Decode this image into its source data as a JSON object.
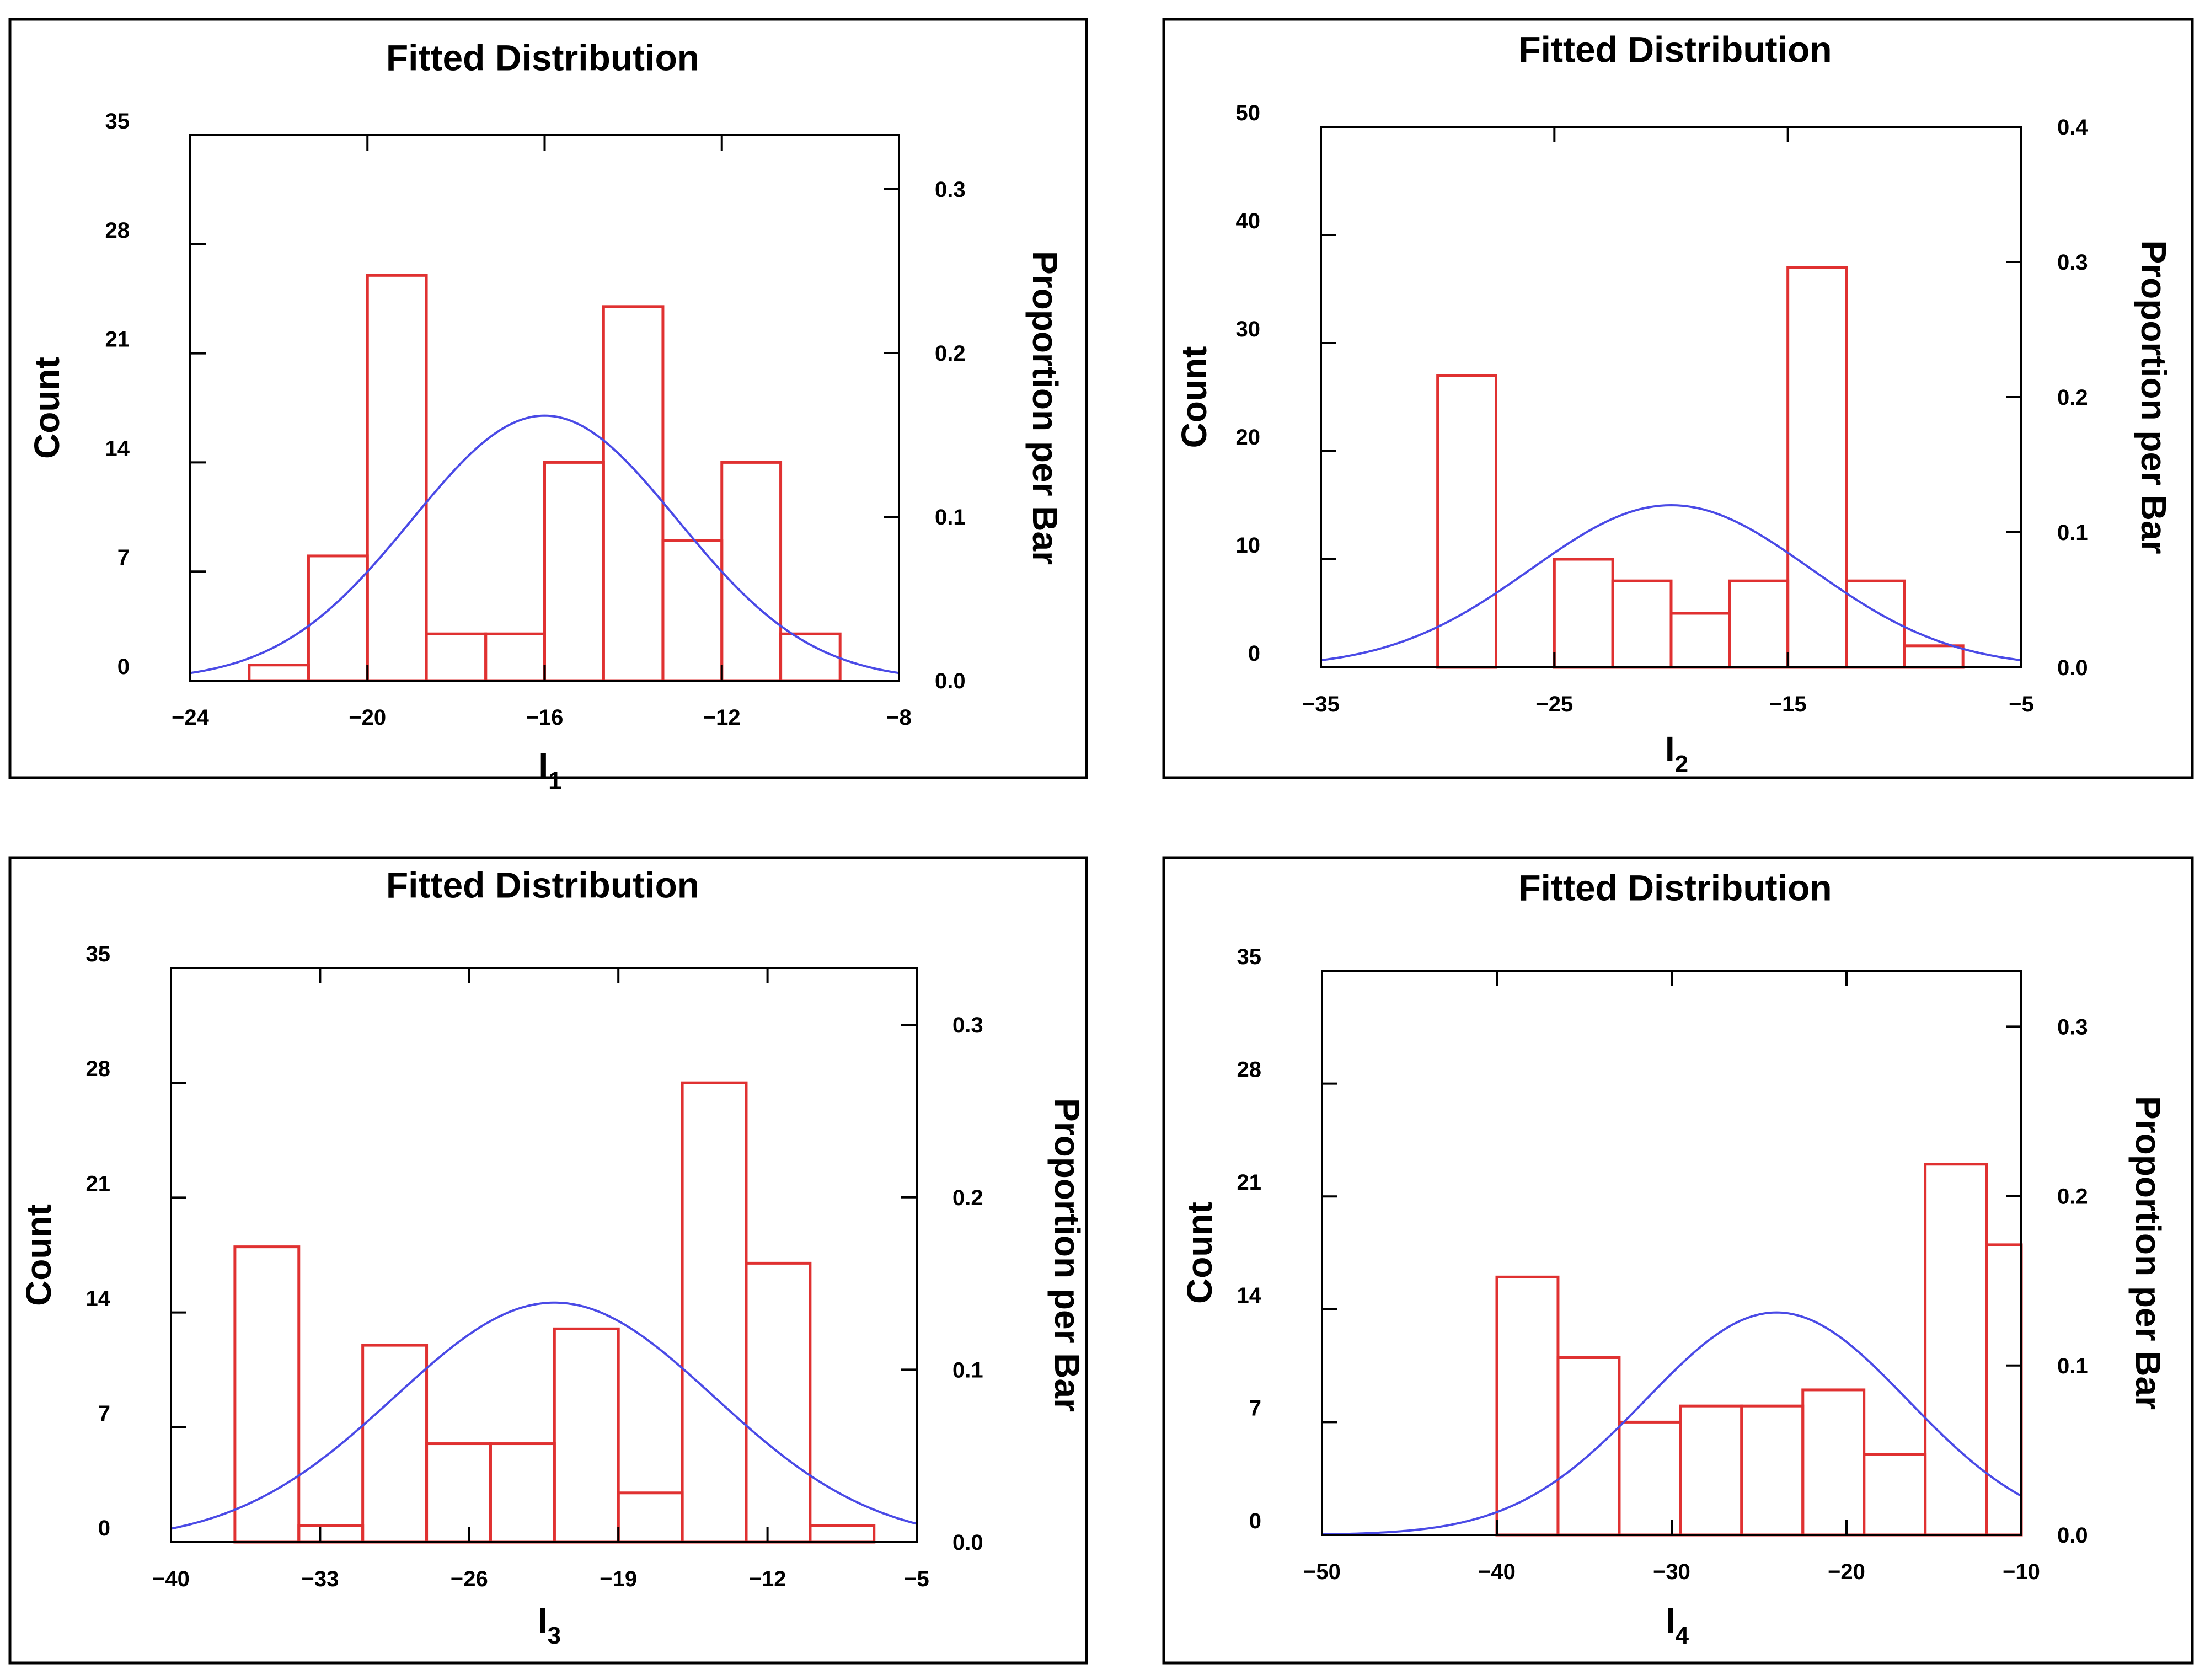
{
  "chart_data": [
    {
      "type": "bar",
      "title": "Fitted Distribution",
      "xlabel": {
        "base": "I",
        "sub": "1"
      },
      "ylabel": "Count",
      "y2label": "Proportion per Bar",
      "xlim": [
        -24,
        -8
      ],
      "xticks": [
        -24,
        -20,
        -16,
        -12,
        -8
      ],
      "xtick_labels": [
        "−24",
        "−20",
        "−16",
        "−12",
        "−8"
      ],
      "ylim": [
        0,
        35
      ],
      "yticks": [
        0,
        7,
        14,
        21,
        28,
        35
      ],
      "ytick_labels": [
        "0",
        "7",
        "14",
        "21",
        "28",
        "35"
      ],
      "y2lim": [
        0,
        0.333
      ],
      "y2ticks": [
        0,
        0.1,
        0.2,
        0.3
      ],
      "y2tick_labels": [
        "0.0",
        "0.1",
        "0.2",
        "0.3"
      ],
      "bins": [
        {
          "x0": -22.67,
          "x1": -21.33,
          "count": 1
        },
        {
          "x0": -21.33,
          "x1": -20.0,
          "count": 8
        },
        {
          "x0": -20.0,
          "x1": -18.67,
          "count": 26
        },
        {
          "x0": -18.67,
          "x1": -17.33,
          "count": 3
        },
        {
          "x0": -17.33,
          "x1": -16.0,
          "count": 3
        },
        {
          "x0": -16.0,
          "x1": -14.67,
          "count": 14
        },
        {
          "x0": -14.67,
          "x1": -13.33,
          "count": 24
        },
        {
          "x0": -13.33,
          "x1": -12.0,
          "count": 9
        },
        {
          "x0": -12.0,
          "x1": -10.67,
          "count": 14
        },
        {
          "x0": -10.67,
          "x1": -9.33,
          "count": 3
        }
      ],
      "fit": {
        "mean": -16.0,
        "sd": 3.0,
        "peak": 17.0
      }
    },
    {
      "type": "bar",
      "title": "Fitted Distribution",
      "xlabel": {
        "base": "I",
        "sub": "2"
      },
      "ylabel": "Count",
      "y2label": "Proportion per Bar",
      "xlim": [
        -35,
        -5
      ],
      "xticks": [
        -35,
        -25,
        -15,
        -5
      ],
      "xtick_labels": [
        "−35",
        "−25",
        "−15",
        "−5"
      ],
      "ylim": [
        0,
        50
      ],
      "yticks": [
        0,
        10,
        20,
        30,
        40,
        50
      ],
      "ytick_labels": [
        "0",
        "10",
        "20",
        "30",
        "40",
        "50"
      ],
      "y2lim": [
        0,
        0.4
      ],
      "y2ticks": [
        0,
        0.1,
        0.2,
        0.3,
        0.4
      ],
      "y2tick_labels": [
        "0.0",
        "0.1",
        "0.2",
        "0.3",
        "0.4"
      ],
      "bins": [
        {
          "x0": -30.0,
          "x1": -27.5,
          "count": 27
        },
        {
          "x0": -27.5,
          "x1": -25.0,
          "count": 0
        },
        {
          "x0": -25.0,
          "x1": -22.5,
          "count": 10
        },
        {
          "x0": -22.5,
          "x1": -20.0,
          "count": 8
        },
        {
          "x0": -20.0,
          "x1": -17.5,
          "count": 5
        },
        {
          "x0": -17.5,
          "x1": -15.0,
          "count": 8
        },
        {
          "x0": -15.0,
          "x1": -12.5,
          "count": 37
        },
        {
          "x0": -12.5,
          "x1": -10.0,
          "count": 8
        },
        {
          "x0": -10.0,
          "x1": -7.5,
          "count": 2
        }
      ],
      "fit": {
        "mean": -20.0,
        "sd": 6.0,
        "peak": 15.0
      }
    },
    {
      "type": "bar",
      "title": "Fitted Distribution",
      "xlabel": {
        "base": "I",
        "sub": "3"
      },
      "ylabel": "Count",
      "y2label": "Proportion per Bar",
      "xlim": [
        -40,
        -5
      ],
      "xticks": [
        -40,
        -33,
        -26,
        -19,
        -12,
        -5
      ],
      "xtick_labels": [
        "−40",
        "−33",
        "−26",
        "−19",
        "−12",
        "−5"
      ],
      "ylim": [
        0,
        35
      ],
      "yticks": [
        0,
        7,
        14,
        21,
        28,
        35
      ],
      "ytick_labels": [
        "0",
        "7",
        "14",
        "21",
        "28",
        "35"
      ],
      "y2lim": [
        0,
        0.333
      ],
      "y2ticks": [
        0,
        0.1,
        0.2,
        0.3
      ],
      "y2tick_labels": [
        "0.0",
        "0.1",
        "0.2",
        "0.3"
      ],
      "bins": [
        {
          "x0": -37.0,
          "x1": -34.0,
          "count": 18
        },
        {
          "x0": -34.0,
          "x1": -31.0,
          "count": 1
        },
        {
          "x0": -31.0,
          "x1": -28.0,
          "count": 12
        },
        {
          "x0": -28.0,
          "x1": -25.0,
          "count": 6
        },
        {
          "x0": -25.0,
          "x1": -22.0,
          "count": 6
        },
        {
          "x0": -22.0,
          "x1": -19.0,
          "count": 13
        },
        {
          "x0": -19.0,
          "x1": -16.0,
          "count": 3
        },
        {
          "x0": -16.0,
          "x1": -13.0,
          "count": 28
        },
        {
          "x0": -13.0,
          "x1": -10.0,
          "count": 17
        },
        {
          "x0": -10.0,
          "x1": -7.0,
          "count": 1
        }
      ],
      "fit": {
        "mean": -22.0,
        "sd": 7.5,
        "peak": 14.6
      }
    },
    {
      "type": "bar",
      "title": "Fitted Distribution",
      "xlabel": {
        "base": "I",
        "sub": "4"
      },
      "ylabel": "Count",
      "y2label": "Proportion per Bar",
      "xlim": [
        -50,
        -10
      ],
      "xticks": [
        -50,
        -40,
        -30,
        -20,
        -10
      ],
      "xtick_labels": [
        "−50",
        "−40",
        "−30",
        "−20",
        "−10"
      ],
      "ylim": [
        0,
        35
      ],
      "yticks": [
        0,
        7,
        14,
        21,
        28,
        35
      ],
      "ytick_labels": [
        "0",
        "7",
        "14",
        "21",
        "28",
        "35"
      ],
      "y2lim": [
        0,
        0.333
      ],
      "y2ticks": [
        0,
        0.1,
        0.2,
        0.3
      ],
      "y2tick_labels": [
        "0.0",
        "0.1",
        "0.2",
        "0.3"
      ],
      "bins": [
        {
          "x0": -40.0,
          "x1": -36.5,
          "count": 16
        },
        {
          "x0": -36.5,
          "x1": -33.0,
          "count": 11
        },
        {
          "x0": -33.0,
          "x1": -29.5,
          "count": 7
        },
        {
          "x0": -29.5,
          "x1": -26.0,
          "count": 8
        },
        {
          "x0": -26.0,
          "x1": -22.5,
          "count": 8
        },
        {
          "x0": -22.5,
          "x1": -19.0,
          "count": 9
        },
        {
          "x0": -19.0,
          "x1": -15.5,
          "count": 5
        },
        {
          "x0": -15.5,
          "x1": -12.0,
          "count": 23
        },
        {
          "x0": -12.0,
          "x1": -10.0,
          "count": 18
        }
      ],
      "fit": {
        "mean": -24.0,
        "sd": 7.5,
        "peak": 13.8
      }
    }
  ],
  "colors": {
    "bar": "#e03131",
    "fit": "#4a4ae6",
    "axis": "#000000",
    "frame": "#000000",
    "background": "#ffffff"
  }
}
